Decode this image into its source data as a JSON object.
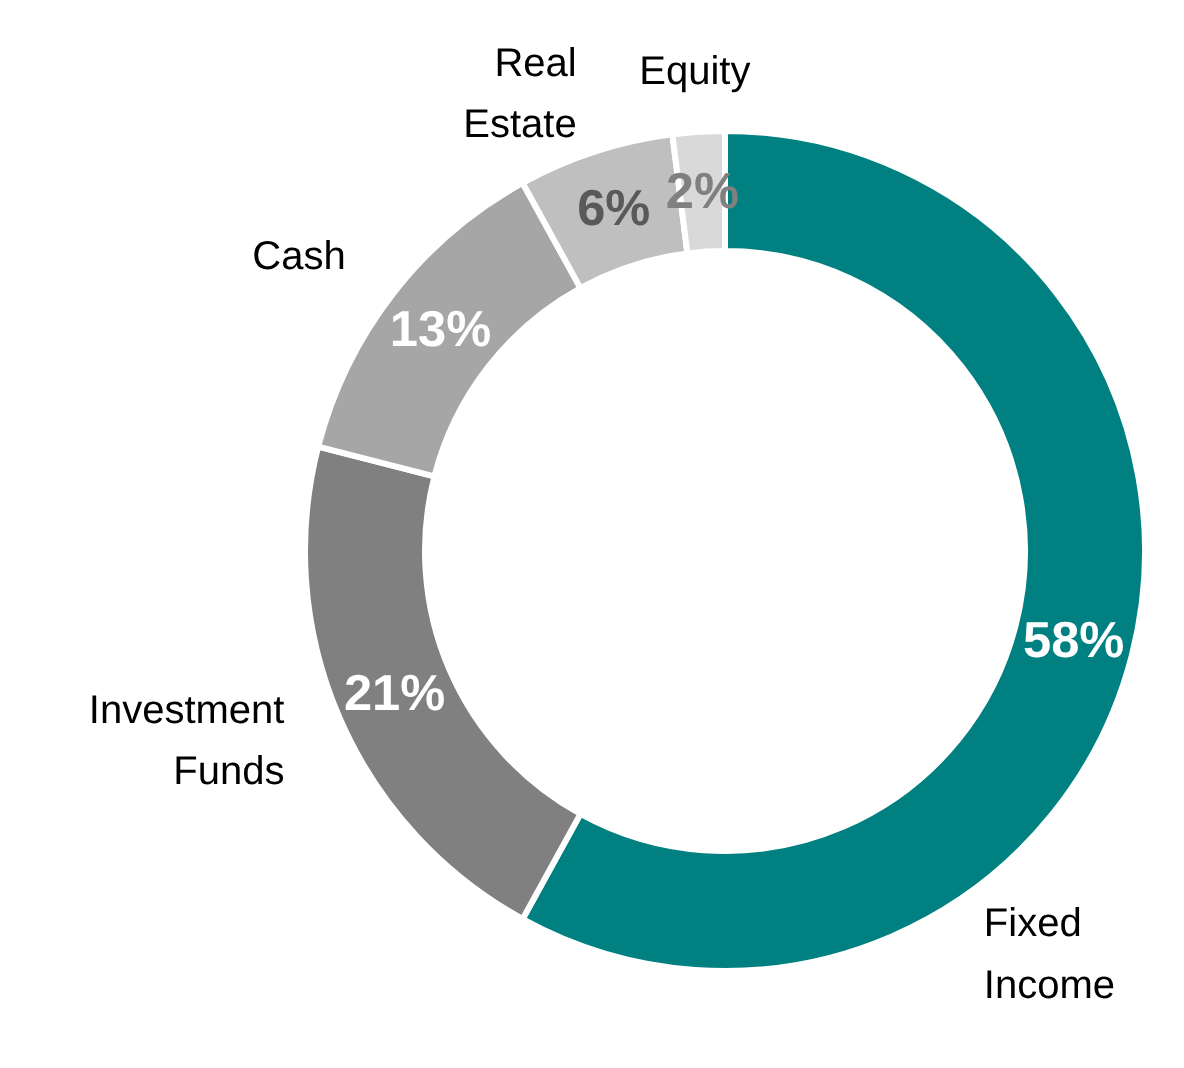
{
  "chart_data": {
    "type": "donut",
    "categories": [
      "Fixed Income",
      "Investment Funds",
      "Cash",
      "Real Estate",
      "Equity"
    ],
    "values": [
      58,
      21,
      13,
      6,
      2
    ],
    "colors": [
      "#008080",
      "#808080",
      "#a6a6a6",
      "#bfbfbf",
      "#d9d9d9"
    ],
    "value_labels": [
      "58%",
      "21%",
      "13%",
      "6%",
      "2%"
    ]
  }
}
